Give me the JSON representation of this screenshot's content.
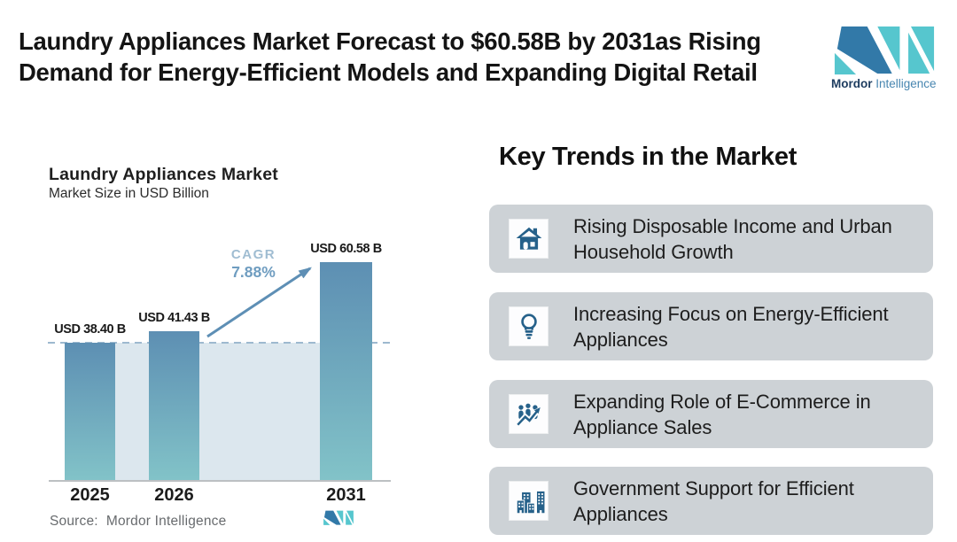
{
  "header": {
    "title_line1": "Laundry Appliances Market Forecast to $60.58B by 2031as Rising",
    "title_line2": "Demand for Energy-Efficient Models and Expanding Digital Retail",
    "brand": {
      "name_bold": "Mordor",
      "name_light": "Intelligence"
    }
  },
  "chart_data": {
    "type": "bar",
    "title": "Laundry Appliances Market",
    "subtitle": "Market Size in USD Billion",
    "categories": [
      "2025",
      "2026",
      "2031"
    ],
    "values": [
      38.4,
      41.43,
      60.58
    ],
    "value_labels": [
      "USD 38.40 B",
      "USD 41.43 B",
      "USD 60.58 B"
    ],
    "cagr": {
      "label": "CAGR",
      "value": "7.88%"
    },
    "reference_line_value": 38.4,
    "ylim": [
      0,
      65
    ],
    "grid": false,
    "legend": false,
    "source": "Source:  Mordor Intelligence",
    "colors": {
      "bar_top": "#5d8fb3",
      "bar_bottom": "#82c3c8",
      "band": "#dce7ee",
      "dashed_line": "#9db9cf",
      "arrow": "#5e8fb5",
      "cagr_label": "#a0bdd2",
      "cagr_value": "#6f9dc0"
    }
  },
  "trends": {
    "heading": "Key Trends in the Market",
    "card_bg": "#cdd2d6",
    "icon_color": "#26618a",
    "items": [
      {
        "icon": "house-icon",
        "text": "Rising Disposable Income and Urban Household Growth"
      },
      {
        "icon": "lightbulb-icon",
        "text": "Increasing Focus on Energy-Efficient Appliances"
      },
      {
        "icon": "ecommerce-growth-icon",
        "text": "Expanding Role of E-Commerce in Appliance Sales"
      },
      {
        "icon": "buildings-icon",
        "text": "Government Support for Efficient Appliances"
      }
    ]
  }
}
